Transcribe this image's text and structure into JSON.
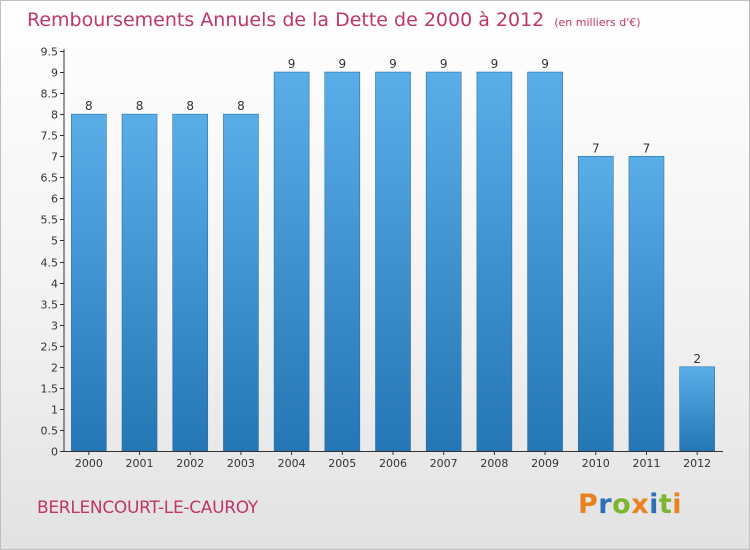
{
  "header": {
    "title": "Remboursements Annuels de la Dette de 2000 à 2012",
    "unit": "(en milliers d'€)"
  },
  "footer": {
    "location": "BERLENCOURT-LE-CAUROY",
    "logo_text": "Proxiti",
    "logo_colors": [
      "#e8821e",
      "#2f6fb5",
      "#7cb52e",
      "#e8821e",
      "#2f6fb5",
      "#7cb52e",
      "#e8821e"
    ]
  },
  "chart_data": {
    "type": "bar",
    "title": "Remboursements Annuels de la Dette de 2000 à 2012",
    "categories": [
      "2000",
      "2001",
      "2002",
      "2003",
      "2004",
      "2005",
      "2006",
      "2007",
      "2008",
      "2009",
      "2010",
      "2011",
      "2012"
    ],
    "values": [
      8,
      8,
      8,
      8,
      9,
      9,
      9,
      9,
      9,
      9,
      7,
      7,
      2
    ],
    "data_labels": [
      "8",
      "8",
      "8",
      "8",
      "9",
      "9",
      "9",
      "9",
      "9",
      "9",
      "7",
      "7",
      "2"
    ],
    "y_ticks": [
      "0",
      "0.5",
      "1",
      "1.5",
      "2",
      "2.5",
      "3",
      "3.5",
      "4",
      "4.5",
      "5",
      "5.5",
      "6",
      "6.5",
      "7",
      "7.5",
      "8",
      "8.5",
      "9",
      "9.5"
    ],
    "ylim": [
      0,
      9.5
    ],
    "xlabel": "",
    "ylabel": "",
    "grid": false,
    "bar_color_top": "#5aaee8",
    "bar_color_bottom": "#2576b4"
  }
}
